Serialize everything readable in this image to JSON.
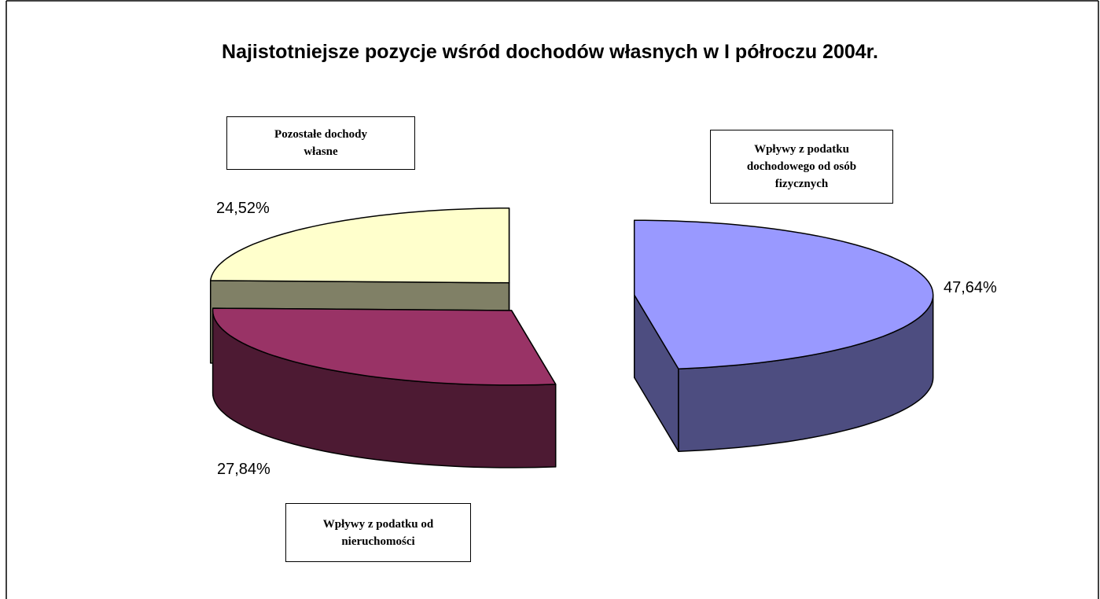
{
  "chart_data": {
    "type": "pie",
    "title": "Najistotniejsze pozycje wśród dochodów własnych w I półroczu 2004r.",
    "categories": [
      "Wpływy z podatku dochodowego od osób fizycznych",
      "Wpływy z podatku od nieruchomości",
      "Pozostałe dochody własne"
    ],
    "values": [
      47.64,
      27.84,
      24.52
    ],
    "value_labels": [
      "47,64%",
      "27,84%",
      "24,52%"
    ],
    "colors": [
      "#9999ff",
      "#993366",
      "#ffffcc"
    ]
  }
}
